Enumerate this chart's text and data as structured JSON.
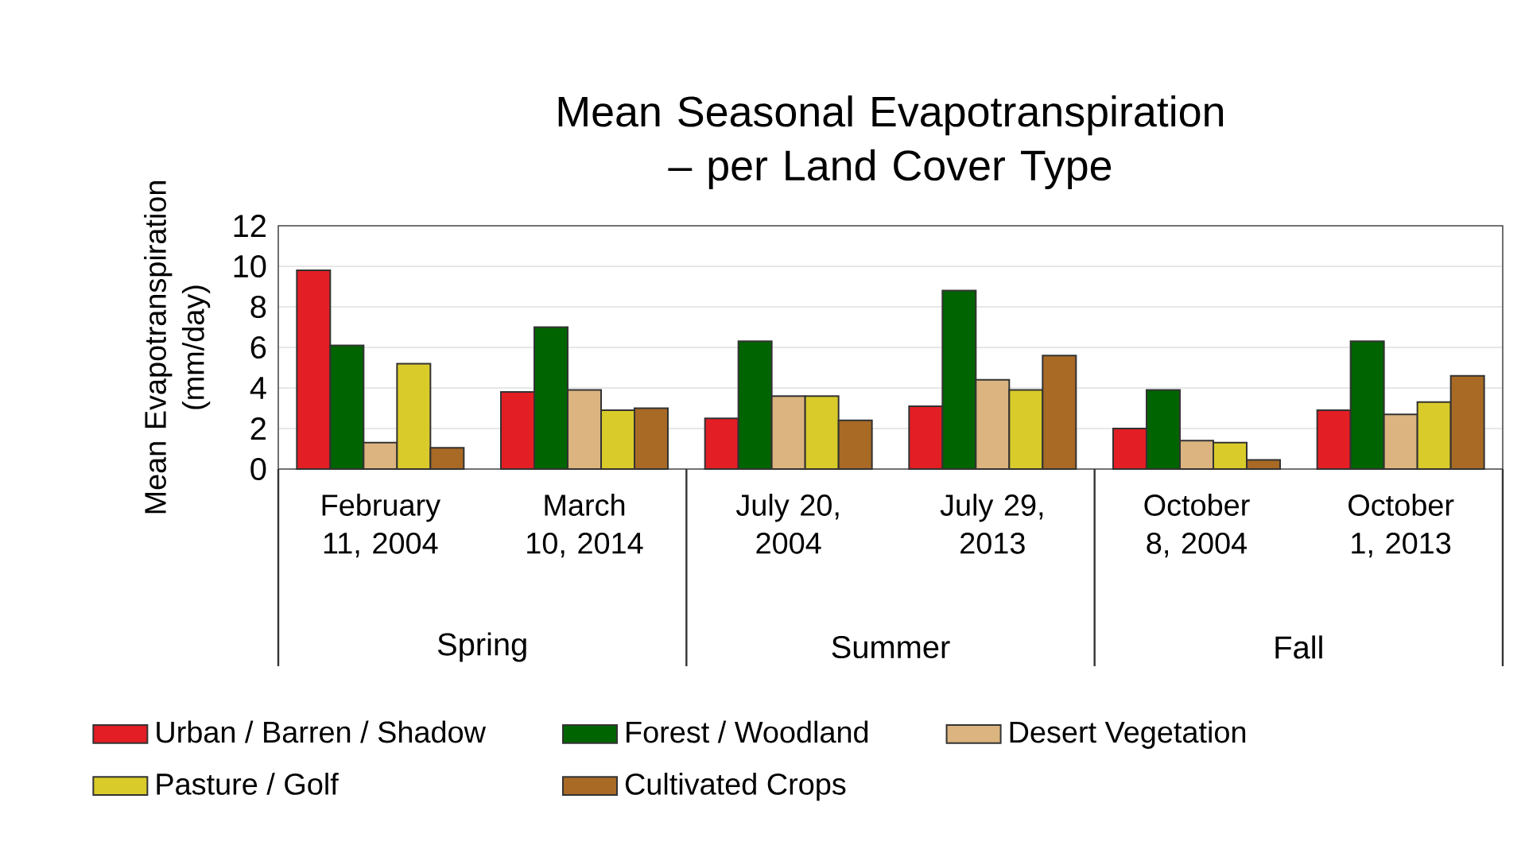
{
  "chart_data": {
    "type": "bar",
    "title": "Mean Seasonal Evapotranspiration – per Land Cover Type",
    "ylabel": "Mean Evapotranspiration (mm/day)",
    "categories": [
      "February 11, 2004",
      "March 10, 2014",
      "July 20, 2004",
      "July 29, 2013",
      "October 8, 2004",
      "October 1, 2013"
    ],
    "annotations": [
      "Spring",
      "Summer",
      "Fall"
    ],
    "series": [
      {
        "name": "Urban / Barren / Shadow",
        "color": "#e31e24",
        "values": [
          9.8,
          3.8,
          2.5,
          3.1,
          2.0,
          2.9
        ]
      },
      {
        "name": "Forest / Woodland",
        "color": "#006400",
        "values": [
          6.1,
          7.0,
          6.3,
          8.8,
          3.9,
          6.3
        ]
      },
      {
        "name": "Desert Vegetation",
        "color": "#dbb47f",
        "values": [
          1.3,
          3.9,
          3.6,
          4.4,
          1.4,
          2.7
        ]
      },
      {
        "name": "Pasture / Golf",
        "color": "#d9cb2a",
        "values": [
          5.2,
          2.9,
          3.6,
          3.9,
          1.3,
          3.3
        ]
      },
      {
        "name": "Cultivated Crops",
        "color": "#a86a25",
        "values": [
          1.05,
          3.0,
          2.4,
          5.6,
          0.45,
          4.6
        ]
      }
    ],
    "ylim": [
      0,
      12
    ],
    "yticks": [
      0,
      2,
      4,
      6,
      8,
      10,
      12
    ],
    "grid": "y",
    "legend": "bottom"
  }
}
